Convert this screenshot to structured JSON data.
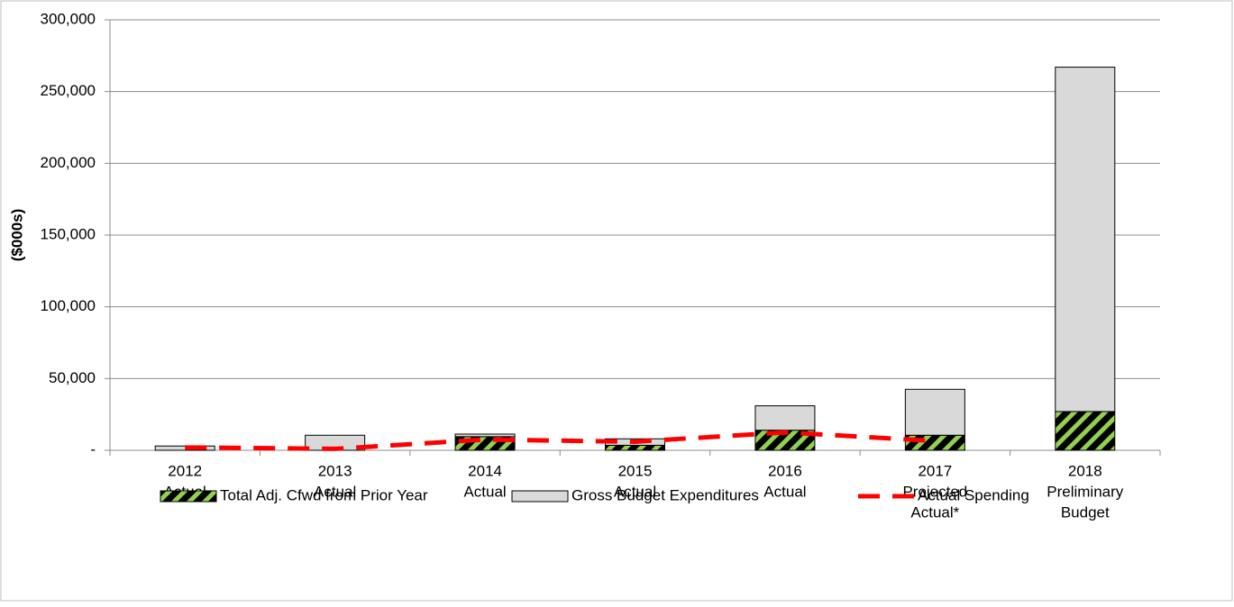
{
  "chart_data": {
    "type": "bar",
    "stacked": true,
    "y_label": "($000s)",
    "categories": [
      [
        "2012",
        "Actual"
      ],
      [
        "2013",
        "Actual"
      ],
      [
        "2014",
        "Actual"
      ],
      [
        "2015",
        "Actual"
      ],
      [
        "2016",
        "Actual"
      ],
      [
        "2017",
        "Projected",
        "Actual*"
      ],
      [
        "2018",
        "Preliminary",
        "Budget"
      ]
    ],
    "series": [
      {
        "name": "Total Adj. Cfwd from Prior Year",
        "type": "bar",
        "color": "#92d050",
        "pattern": "striped",
        "values": [
          0,
          0,
          9500,
          3500,
          14000,
          10500,
          27000
        ]
      },
      {
        "name": "Gross Budget Expenditures",
        "type": "bar",
        "color": "#d9d9d9",
        "values": [
          3000,
          10500,
          1800,
          4500,
          17000,
          32000,
          240000
        ]
      },
      {
        "name": "Actual Spending",
        "type": "line",
        "color": "#ff0000",
        "dashed": true,
        "values": [
          2000,
          1000,
          7500,
          6000,
          12500,
          6500,
          null
        ]
      }
    ],
    "ylim": [
      0,
      300000
    ],
    "yticks": [
      {
        "value": 0,
        "label": "-"
      },
      {
        "value": 50000,
        "label": "50,000"
      },
      {
        "value": 100000,
        "label": "100,000"
      },
      {
        "value": 150000,
        "label": "150,000"
      },
      {
        "value": 200000,
        "label": "200,000"
      },
      {
        "value": 250000,
        "label": "250,000"
      },
      {
        "value": 300000,
        "label": "300,000"
      }
    ],
    "grid": true,
    "legend": "bottom"
  }
}
